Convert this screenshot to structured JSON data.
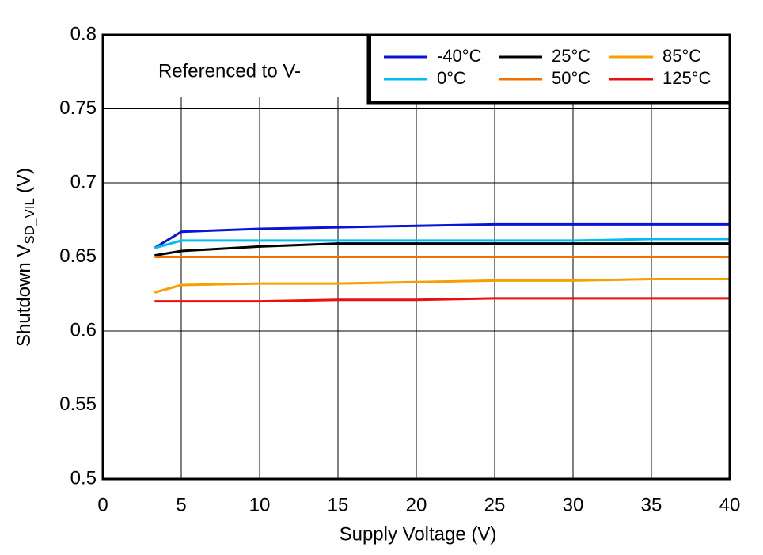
{
  "chart_data": {
    "type": "line",
    "x_label": "Supply Voltage (V)",
    "y_label": "Shutdown V",
    "y_label_subscript": "SD_VIL",
    "y_label_unit": "(V)",
    "annotation": "Referenced to V-",
    "x": [
      3.3,
      5,
      10,
      15,
      20,
      25,
      30,
      35,
      40
    ],
    "series": [
      {
        "name": "-40°C",
        "color": "#0a14d6",
        "values": [
          0.656,
          0.667,
          0.669,
          0.67,
          0.671,
          0.672,
          0.672,
          0.672,
          0.672
        ]
      },
      {
        "name": "0°C",
        "color": "#00bff0",
        "values": [
          0.656,
          0.661,
          0.661,
          0.661,
          0.661,
          0.661,
          0.661,
          0.662,
          0.662
        ]
      },
      {
        "name": "25°C",
        "color": "#000000",
        "values": [
          0.651,
          0.654,
          0.657,
          0.659,
          0.659,
          0.659,
          0.659,
          0.659,
          0.659
        ]
      },
      {
        "name": "50°C",
        "color": "#f07000",
        "values": [
          0.65,
          0.65,
          0.65,
          0.65,
          0.65,
          0.65,
          0.65,
          0.65,
          0.65
        ]
      },
      {
        "name": "85°C",
        "color": "#f5a000",
        "values": [
          0.626,
          0.631,
          0.632,
          0.632,
          0.633,
          0.634,
          0.634,
          0.635,
          0.635
        ]
      },
      {
        "name": "125°C",
        "color": "#e81010",
        "values": [
          0.62,
          0.62,
          0.62,
          0.621,
          0.621,
          0.622,
          0.622,
          0.622,
          0.622
        ]
      }
    ],
    "xlim": [
      0,
      40
    ],
    "xticks": [
      0,
      5,
      10,
      15,
      20,
      25,
      30,
      35,
      40
    ],
    "ylim": [
      0.5,
      0.8
    ],
    "yticks": [
      0.5,
      0.55,
      0.6,
      0.65,
      0.7,
      0.75,
      0.8
    ],
    "grid": true
  }
}
